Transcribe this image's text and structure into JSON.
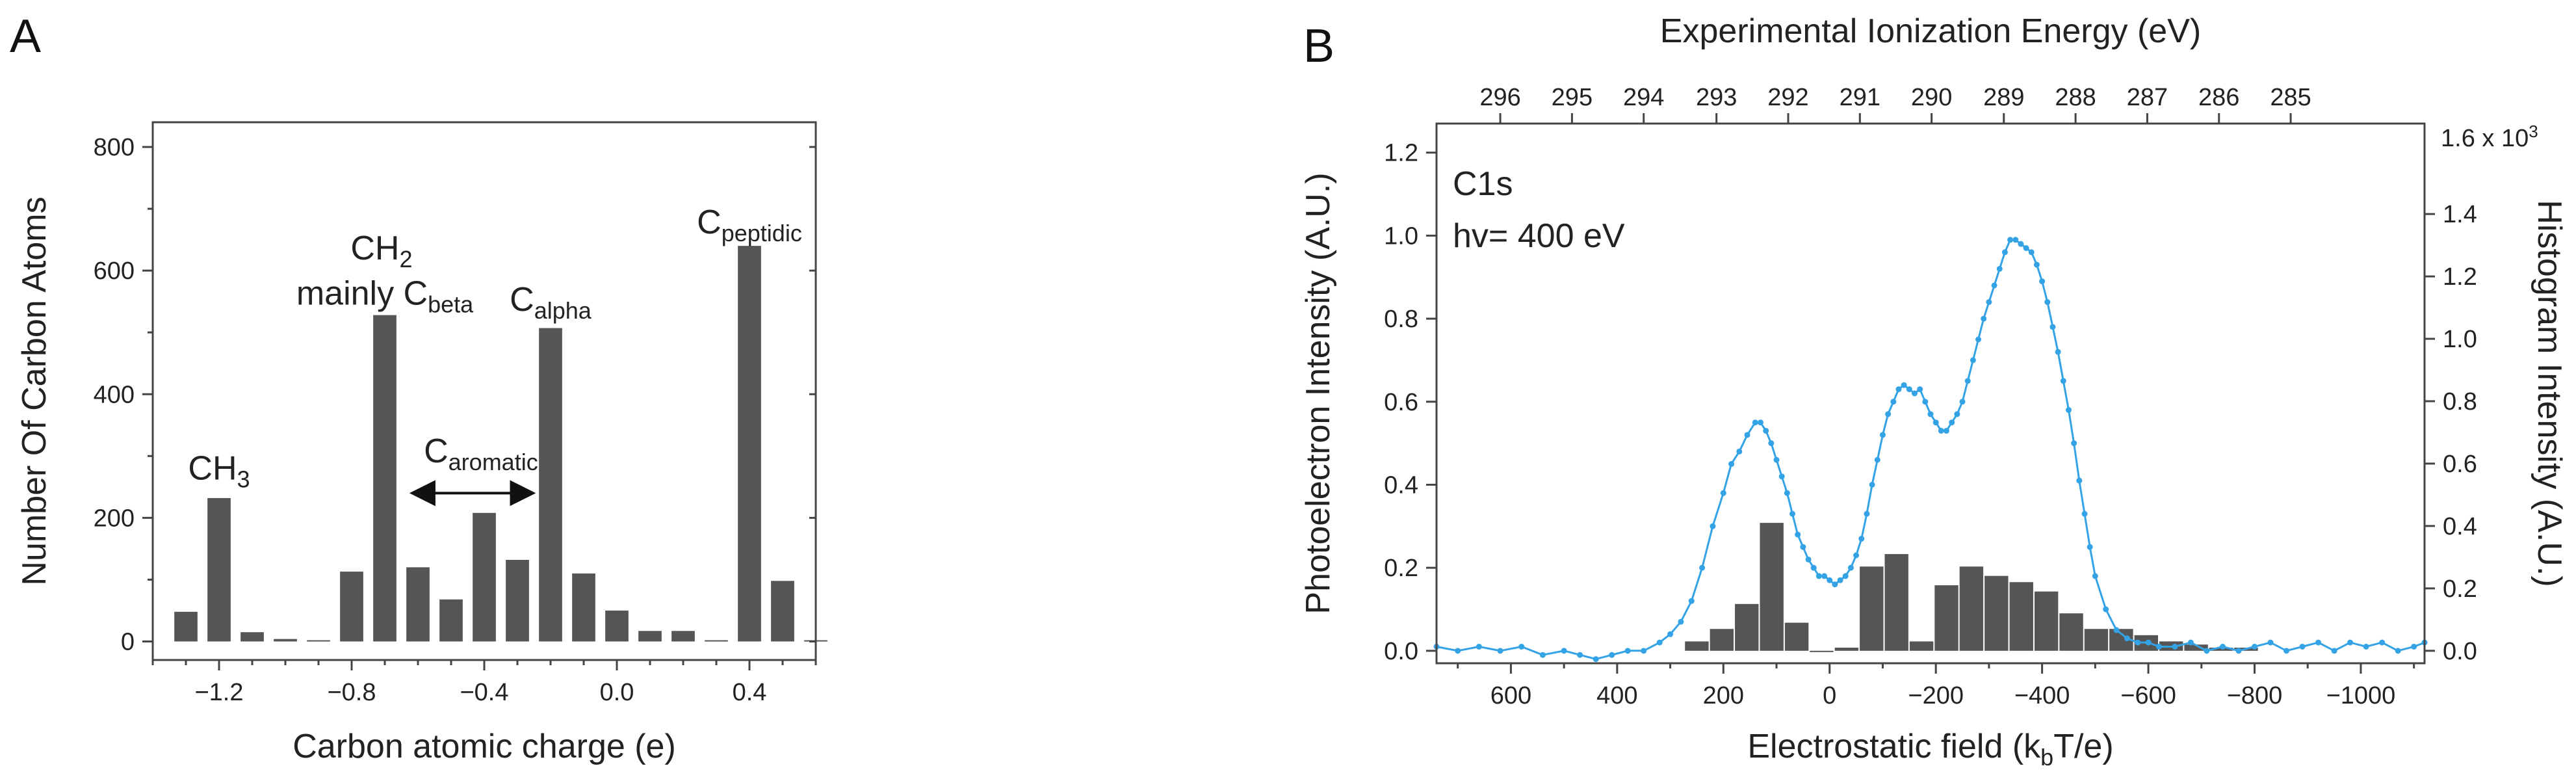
{
  "panels": {
    "a": {
      "label": "A"
    },
    "b": {
      "label": "B",
      "text_lines": [
        "C1s",
        "hv= 400 eV"
      ]
    }
  },
  "chart_data": [
    {
      "type": "bar",
      "panel": "A",
      "xlabel": "Carbon atomic charge (e)",
      "ylabel": "Number Of Carbon Atoms",
      "xlim": [
        -1.4,
        0.6
      ],
      "ylim": [
        -30,
        840
      ],
      "xticks": [
        -1.2,
        -0.8,
        -0.4,
        0.0,
        0.4
      ],
      "xtick_labels": [
        "−1.2",
        "−0.8",
        "−0.4",
        "0.0",
        "0.4"
      ],
      "yticks": [
        0,
        200,
        400,
        600,
        800
      ],
      "ytick_labels": [
        "0",
        "200",
        "400",
        "600",
        "800"
      ],
      "bar_width": 0.07,
      "color": "#555555",
      "x": [
        -1.3,
        -1.2,
        -1.1,
        -1.0,
        -0.9,
        -0.8,
        -0.7,
        -0.6,
        -0.5,
        -0.4,
        -0.3,
        -0.2,
        -0.1,
        0.0,
        0.1,
        0.2,
        0.3,
        0.4,
        0.5,
        0.6
      ],
      "values": [
        48,
        232,
        15,
        4,
        2,
        113,
        528,
        120,
        68,
        208,
        132,
        507,
        110,
        50,
        17,
        17,
        2,
        640,
        98,
        2
      ],
      "annotations": [
        {
          "id": "ch3",
          "base": "CH",
          "sub": "3",
          "x": -1.2,
          "y": 262
        },
        {
          "id": "ch2",
          "base": "CH",
          "sub": "2",
          "x": -0.71,
          "y": 618
        },
        {
          "id": "mainly",
          "base": "mainly C",
          "sub": "beta",
          "x": -0.7,
          "y": 545
        },
        {
          "id": "calpha",
          "base": "C",
          "sub": "alpha",
          "x": -0.2,
          "y": 535
        },
        {
          "id": "cpeptidic",
          "base": "C",
          "sub": "peptidic",
          "x": 0.4,
          "y": 660
        },
        {
          "id": "caromatic",
          "base": "C",
          "sub": "aromatic",
          "x": -0.41,
          "y": 290
        }
      ],
      "arrow": {
        "from": -0.61,
        "to": -0.26,
        "y": 240
      }
    },
    {
      "type": "bar+line",
      "panel": "B",
      "xlabel": "Electrostatic field (kₘT/e)",
      "xlabel_base": "Electrostatic field (k",
      "xlabel_sub": "b",
      "xlabel_tail": "T/e)",
      "ylabel_left": "Photoelectron Intensity (A.U.)",
      "ylabel_right": "Histogram Intensity (A.U.)",
      "top_xlabel": "Experimental Ionization Energy (eV)",
      "xlim": [
        740,
        -1120
      ],
      "ylim_left": [
        -0.03,
        1.27
      ],
      "ylim_right": [
        -0.04,
        1.69
      ],
      "xticks": [
        600,
        400,
        200,
        0,
        -200,
        -400,
        -600,
        -800,
        -1000
      ],
      "xtick_labels": [
        "600",
        "400",
        "200",
        "0",
        "−200",
        "−400",
        "−600",
        "−800",
        "−1000"
      ],
      "yticks_left": [
        0.0,
        0.2,
        0.4,
        0.6,
        0.8,
        1.0,
        1.2
      ],
      "ytick_labels_left": [
        "0.0",
        "0.2",
        "0.4",
        "0.6",
        "0.8",
        "1.0",
        "1.2"
      ],
      "yticks_right": [
        0.0,
        0.2,
        0.4,
        0.6,
        0.8,
        1.0,
        1.2,
        1.4
      ],
      "ytick_labels_right": [
        "0.0",
        "0.2",
        "0.4",
        "0.6",
        "0.8",
        "1.0",
        "1.2",
        "1.4"
      ],
      "right_top_label": "1.6 x 10³",
      "right_top_base": "1.6 x 10",
      "right_top_exp": "3",
      "top_ticks_ev": [
        296,
        295,
        294,
        293,
        292,
        291,
        290,
        289,
        288,
        287,
        286,
        285
      ],
      "top_ticks_x": [
        620,
        485,
        350,
        213,
        78,
        -57,
        -192,
        -328,
        -463,
        -598,
        -733,
        -868
      ],
      "histogram": {
        "color": "#555555",
        "bin_width": 47,
        "x": [
          250,
          203,
          156,
          109,
          62,
          15,
          -32,
          -79,
          -126,
          -173,
          -220,
          -267,
          -314,
          -361,
          -408,
          -455,
          -502,
          -549,
          -596,
          -643,
          -690,
          -737,
          -784
        ],
        "values": [
          0.03,
          0.07,
          0.15,
          0.41,
          0.09,
          0.0,
          0.01,
          0.27,
          0.31,
          0.03,
          0.21,
          0.27,
          0.24,
          0.22,
          0.19,
          0.12,
          0.07,
          0.07,
          0.05,
          0.03,
          0.02,
          0.01,
          0.01
        ]
      },
      "spectrum": {
        "color": "#33a3e6",
        "x": [
          740,
          700,
          660,
          620,
          580,
          540,
          500,
          470,
          440,
          410,
          380,
          350,
          320,
          300,
          280,
          260,
          240,
          220,
          200,
          185,
          170,
          155,
          140,
          130,
          120,
          110,
          100,
          90,
          80,
          70,
          60,
          50,
          40,
          30,
          20,
          10,
          0,
          -10,
          -20,
          -30,
          -40,
          -50,
          -60,
          -70,
          -80,
          -90,
          -100,
          -110,
          -120,
          -130,
          -140,
          -150,
          -160,
          -170,
          -180,
          -190,
          -200,
          -210,
          -220,
          -230,
          -240,
          -250,
          -260,
          -270,
          -280,
          -290,
          -300,
          -310,
          -320,
          -330,
          -340,
          -350,
          -360,
          -370,
          -380,
          -390,
          -400,
          -410,
          -420,
          -430,
          -440,
          -450,
          -460,
          -470,
          -480,
          -490,
          -500,
          -520,
          -540,
          -560,
          -580,
          -600,
          -620,
          -650,
          -680,
          -710,
          -740,
          -770,
          -800,
          -830,
          -860,
          -890,
          -920,
          -950,
          -980,
          -1010,
          -1040,
          -1070,
          -1100,
          -1120
        ],
        "values": [
          0.01,
          0.0,
          0.01,
          0.0,
          0.01,
          -0.01,
          0.0,
          -0.01,
          -0.02,
          -0.01,
          0.0,
          0.0,
          0.02,
          0.04,
          0.07,
          0.12,
          0.2,
          0.3,
          0.38,
          0.45,
          0.48,
          0.52,
          0.55,
          0.55,
          0.53,
          0.5,
          0.46,
          0.42,
          0.38,
          0.33,
          0.28,
          0.25,
          0.22,
          0.2,
          0.18,
          0.18,
          0.17,
          0.16,
          0.17,
          0.18,
          0.2,
          0.23,
          0.27,
          0.33,
          0.4,
          0.46,
          0.52,
          0.57,
          0.6,
          0.63,
          0.64,
          0.63,
          0.62,
          0.63,
          0.6,
          0.57,
          0.55,
          0.53,
          0.53,
          0.55,
          0.57,
          0.6,
          0.65,
          0.7,
          0.75,
          0.8,
          0.84,
          0.88,
          0.92,
          0.96,
          0.99,
          0.99,
          0.98,
          0.97,
          0.96,
          0.93,
          0.89,
          0.84,
          0.78,
          0.72,
          0.65,
          0.58,
          0.5,
          0.41,
          0.33,
          0.25,
          0.18,
          0.1,
          0.05,
          0.03,
          0.02,
          0.02,
          0.01,
          0.01,
          0.02,
          0.0,
          0.01,
          0.0,
          0.01,
          0.02,
          0.0,
          0.01,
          0.02,
          0.0,
          0.02,
          0.01,
          0.02,
          0.0,
          0.01,
          0.02
        ]
      }
    }
  ]
}
